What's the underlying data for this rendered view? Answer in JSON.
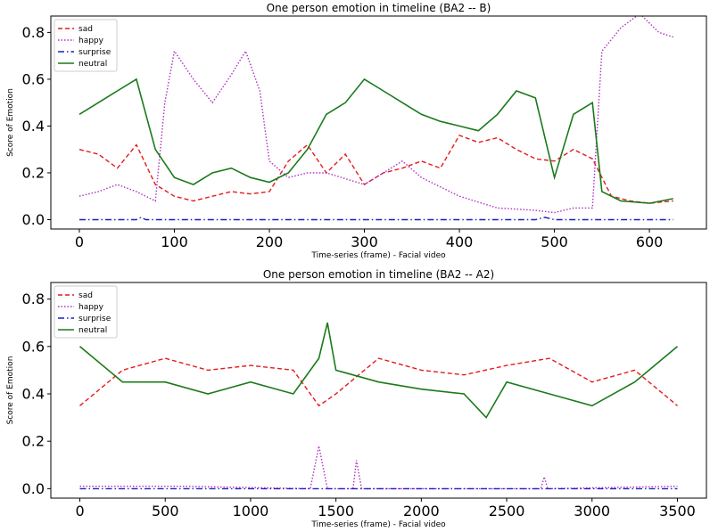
{
  "colors": {
    "sad": "#e41a1c",
    "happy": "#b22cc6",
    "surprise": "#1f1fbf",
    "neutral": "#1a7a1a"
  },
  "chart_data": [
    {
      "type": "line",
      "title": "One person emotion in timeline (BA2 -- B)",
      "xlabel": "Time-series (frame) - Facial video",
      "ylabel": "Score of Emotion",
      "xlim": [
        -30,
        660
      ],
      "ylim": [
        -0.04,
        0.87
      ],
      "xticks": [
        0,
        100,
        200,
        300,
        400,
        500,
        600
      ],
      "yticks": [
        0.0,
        0.2,
        0.4,
        0.6,
        0.8
      ],
      "legend": {
        "position": "top-left"
      },
      "series": [
        {
          "name": "sad",
          "style": "dashed",
          "x": [
            0,
            20,
            40,
            60,
            80,
            100,
            120,
            140,
            160,
            180,
            200,
            220,
            240,
            260,
            280,
            300,
            320,
            340,
            360,
            380,
            400,
            420,
            440,
            460,
            480,
            500,
            520,
            540,
            560,
            580,
            600,
            625
          ],
          "y": [
            0.3,
            0.28,
            0.22,
            0.32,
            0.15,
            0.1,
            0.08,
            0.1,
            0.12,
            0.11,
            0.12,
            0.25,
            0.32,
            0.2,
            0.28,
            0.15,
            0.2,
            0.22,
            0.25,
            0.22,
            0.36,
            0.33,
            0.35,
            0.3,
            0.26,
            0.25,
            0.3,
            0.26,
            0.1,
            0.08,
            0.07,
            0.08
          ]
        },
        {
          "name": "happy",
          "style": "dotted",
          "x": [
            0,
            20,
            40,
            60,
            80,
            90,
            100,
            120,
            140,
            160,
            175,
            190,
            200,
            220,
            240,
            260,
            300,
            340,
            360,
            400,
            440,
            480,
            500,
            520,
            540,
            550,
            570,
            590,
            610,
            625
          ],
          "y": [
            0.1,
            0.12,
            0.15,
            0.12,
            0.08,
            0.5,
            0.72,
            0.6,
            0.5,
            0.62,
            0.72,
            0.55,
            0.25,
            0.18,
            0.2,
            0.2,
            0.15,
            0.25,
            0.18,
            0.1,
            0.05,
            0.04,
            0.03,
            0.05,
            0.05,
            0.72,
            0.82,
            0.88,
            0.8,
            0.78
          ]
        },
        {
          "name": "surprise",
          "style": "dashdot",
          "x": [
            0,
            60,
            65,
            70,
            480,
            490,
            500,
            625
          ],
          "y": [
            0.0,
            0.0,
            0.01,
            0.0,
            0.0,
            0.01,
            0.0,
            0.0
          ]
        },
        {
          "name": "neutral",
          "style": "solid",
          "x": [
            0,
            20,
            40,
            60,
            80,
            100,
            120,
            140,
            160,
            180,
            200,
            220,
            240,
            260,
            280,
            300,
            320,
            340,
            360,
            380,
            400,
            420,
            440,
            460,
            480,
            500,
            520,
            540,
            550,
            570,
            600,
            625
          ],
          "y": [
            0.45,
            0.5,
            0.55,
            0.6,
            0.3,
            0.18,
            0.15,
            0.2,
            0.22,
            0.18,
            0.16,
            0.2,
            0.3,
            0.45,
            0.5,
            0.6,
            0.55,
            0.5,
            0.45,
            0.42,
            0.4,
            0.38,
            0.45,
            0.55,
            0.52,
            0.18,
            0.45,
            0.5,
            0.12,
            0.08,
            0.07,
            0.09
          ]
        }
      ]
    },
    {
      "type": "line",
      "title": "One person emotion in timeline (BA2 -- A2)",
      "xlabel": "Time-series (frame) - Facial video",
      "ylabel": "Score of Emotion",
      "xlim": [
        -170,
        3670
      ],
      "ylim": [
        -0.04,
        0.87
      ],
      "xticks": [
        0,
        500,
        1000,
        1500,
        2000,
        2500,
        3000,
        3500
      ],
      "yticks": [
        0.0,
        0.2,
        0.4,
        0.6,
        0.8
      ],
      "legend": {
        "position": "top-left"
      },
      "series": [
        {
          "name": "sad",
          "style": "dashed",
          "x": [
            0,
            250,
            500,
            750,
            1000,
            1250,
            1400,
            1500,
            1750,
            2000,
            2250,
            2500,
            2750,
            3000,
            3250,
            3500
          ],
          "y": [
            0.35,
            0.5,
            0.55,
            0.5,
            0.52,
            0.5,
            0.35,
            0.4,
            0.55,
            0.5,
            0.48,
            0.52,
            0.55,
            0.45,
            0.5,
            0.35
          ]
        },
        {
          "name": "happy",
          "style": "dotted",
          "x": [
            0,
            600,
            1350,
            1400,
            1450,
            1600,
            1620,
            1650,
            2700,
            2720,
            2740,
            3500
          ],
          "y": [
            0.01,
            0.01,
            0.0,
            0.18,
            0.0,
            0.0,
            0.12,
            0.0,
            0.0,
            0.05,
            0.0,
            0.01
          ]
        },
        {
          "name": "surprise",
          "style": "dashdot",
          "x": [
            0,
            3500
          ],
          "y": [
            0.0,
            0.0
          ]
        },
        {
          "name": "neutral",
          "style": "solid",
          "x": [
            0,
            250,
            500,
            750,
            1000,
            1250,
            1400,
            1450,
            1500,
            1750,
            2000,
            2250,
            2380,
            2500,
            2750,
            3000,
            3250,
            3500
          ],
          "y": [
            0.6,
            0.45,
            0.45,
            0.4,
            0.45,
            0.4,
            0.55,
            0.7,
            0.5,
            0.45,
            0.42,
            0.4,
            0.3,
            0.45,
            0.4,
            0.35,
            0.45,
            0.6
          ]
        }
      ]
    }
  ]
}
